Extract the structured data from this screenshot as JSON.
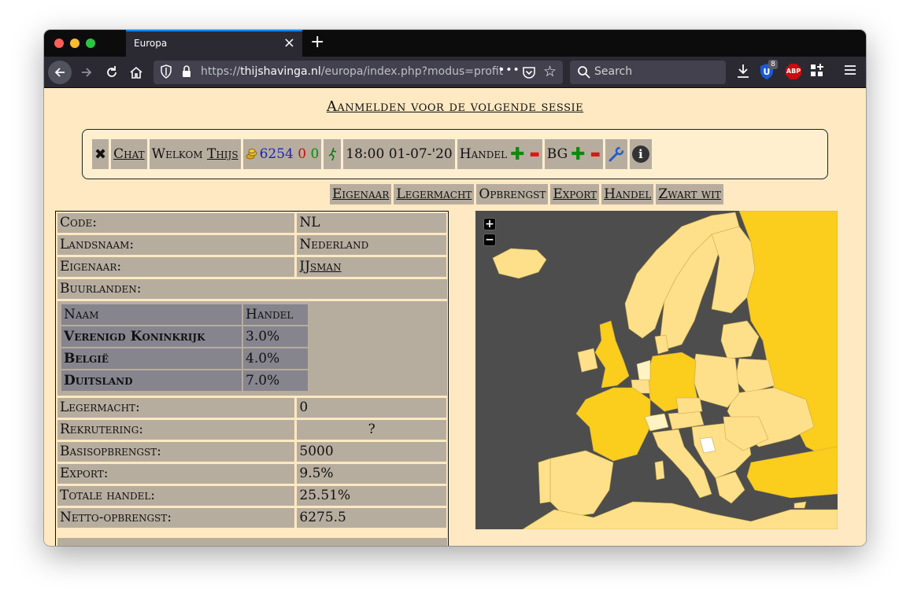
{
  "browser": {
    "tab_title": "Europa",
    "tab_close": "×",
    "new_tab": "+",
    "url_prefix": "https://",
    "url_domain": "thijshavinga.nl",
    "url_path": "/europa/index.php?modus=profit",
    "url_more": "•••",
    "search_placeholder": "Search",
    "ublock_badge": "8",
    "abp_label": "ABP"
  },
  "page": {
    "signup_link": "Aanmelden voor de volgende sessie",
    "status": {
      "close": "✖",
      "chat": "Chat",
      "welcome_prefix": "Welkom",
      "user": "Thijs",
      "gold": "6254",
      "red_value": "0",
      "green_value": "0",
      "datetime": "18:00 01-07-'20",
      "trade_label": "Handel",
      "bg_label": "BG",
      "plus": "✚",
      "minus": "▬",
      "info": "i"
    },
    "modes": [
      {
        "label": "Eigenaar",
        "link": true
      },
      {
        "label": "Legermacht",
        "link": true
      },
      {
        "label": "Opbrengst",
        "link": false
      },
      {
        "label": "Export",
        "link": true
      },
      {
        "label": "Handel",
        "link": true
      },
      {
        "label": "Zwart wit",
        "link": true
      }
    ],
    "info": {
      "code_label": "Code:",
      "code_value": "NL",
      "name_label": "Landsnaam:",
      "name_value": "Nederland",
      "owner_label": "Eigenaar:",
      "owner_value": "IJsman",
      "neighbours_label": "Buurlanden:",
      "neighbours_header": {
        "name": "Naam",
        "trade": "Handel"
      },
      "neighbours": [
        {
          "name": "Verenigd Koninkrijk",
          "trade": "3.0%"
        },
        {
          "name": "België",
          "trade": "4.0%"
        },
        {
          "name": "Duitsland",
          "trade": "7.0%"
        }
      ],
      "army_label": "Legermacht:",
      "army_value": "0",
      "recruit_label": "Rekrutering:",
      "recruit_value": "?",
      "base_label": "Basisopbrengst:",
      "base_value": "5000",
      "export_label": "Export:",
      "export_value": "9.5%",
      "trade_label": "Totale handel:",
      "trade_value": "25.51%",
      "net_label": "Netto-opbrengst:",
      "net_value": "6275.5"
    },
    "map": {
      "zoom_in": "+",
      "zoom_out": "−",
      "sea_color": "#4d4d4d",
      "land_colors": [
        "#fee08b",
        "#fdd84a",
        "#fbcd1c",
        "#fff3c4",
        "#ffffff"
      ]
    }
  }
}
